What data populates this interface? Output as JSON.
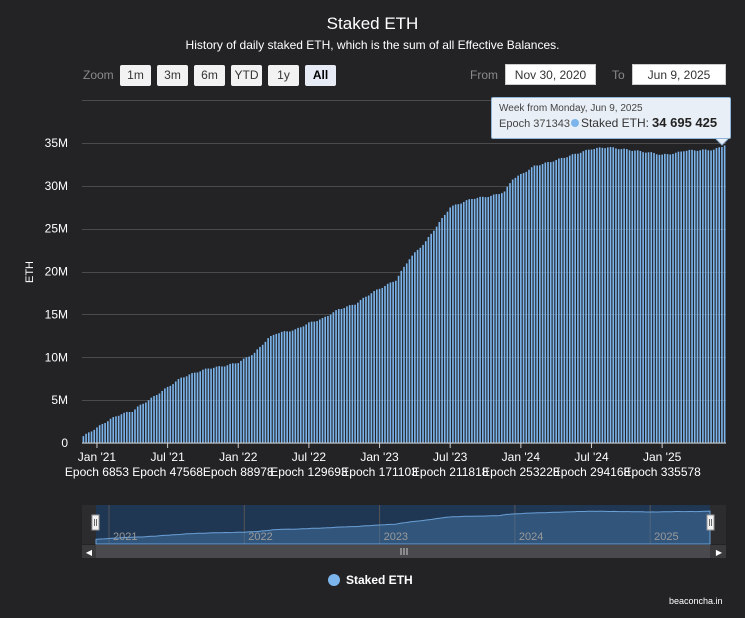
{
  "header": {
    "title": "Staked ETH",
    "subtitle": "History of daily staked ETH, which is the sum of all Effective Balances."
  },
  "zoom": {
    "label": "Zoom",
    "buttons": [
      "1m",
      "3m",
      "6m",
      "YTD",
      "1y",
      "All"
    ],
    "active": "All"
  },
  "range": {
    "from_label": "From",
    "from_value": "Nov 30, 2020",
    "to_label": "To",
    "to_value": "Jun 9, 2025"
  },
  "tooltip": {
    "header": "Week from Monday, Jun 9, 2025",
    "epoch": "Epoch 371343",
    "series_name": "Staked ETH:",
    "value": "34 695 425"
  },
  "legend": {
    "label": "Staked ETH"
  },
  "credit": {
    "label": "beaconcha.in"
  },
  "colors": {
    "series": "#7cb5ec",
    "background": "#232225"
  },
  "chart_data": {
    "type": "bar",
    "title": "Staked ETH",
    "subtitle": "History of daily staked ETH, which is the sum of all Effective Balances.",
    "xlabel": "",
    "ylabel": "ETH",
    "ylim": [
      0,
      40000000
    ],
    "y_ticks": [
      0,
      5000000,
      10000000,
      15000000,
      20000000,
      25000000,
      30000000,
      35000000
    ],
    "y_tick_labels": [
      "0",
      "5M",
      "10M",
      "15M",
      "20M",
      "25M",
      "30M",
      "35M"
    ],
    "x_ticks": [
      {
        "label": "Jan '21",
        "epoch": "Epoch 6853",
        "week": 5
      },
      {
        "label": "Jul '21",
        "epoch": "Epoch 47568",
        "week": 31
      },
      {
        "label": "Jan '22",
        "epoch": "Epoch 88978",
        "week": 57
      },
      {
        "label": "Jul '22",
        "epoch": "Epoch 129693",
        "week": 83
      },
      {
        "label": "Jan '23",
        "epoch": "Epoch 171103",
        "week": 109
      },
      {
        "label": "Jul '23",
        "epoch": "Epoch 211818",
        "week": 135
      },
      {
        "label": "Jan '24",
        "epoch": "Epoch 253228",
        "week": 161
      },
      {
        "label": "Jul '24",
        "epoch": "Epoch 294168",
        "week": 187
      },
      {
        "label": "Jan '25",
        "epoch": "Epoch 335578",
        "week": 213
      }
    ],
    "interval": "weekly",
    "num_weeks": 237,
    "anchors": [
      [
        0,
        0.8
      ],
      [
        5,
        1.8
      ],
      [
        10,
        2.8
      ],
      [
        14,
        3.4
      ],
      [
        18,
        3.7
      ],
      [
        20,
        4.2
      ],
      [
        24,
        5.0
      ],
      [
        31,
        6.5
      ],
      [
        36,
        7.6
      ],
      [
        41,
        8.2
      ],
      [
        46,
        8.7
      ],
      [
        52,
        9.0
      ],
      [
        57,
        9.4
      ],
      [
        63,
        10.5
      ],
      [
        68,
        12.2
      ],
      [
        71,
        12.8
      ],
      [
        78,
        13.2
      ],
      [
        83,
        14.0
      ],
      [
        88,
        14.5
      ],
      [
        94,
        15.6
      ],
      [
        100,
        16.2
      ],
      [
        106,
        17.5
      ],
      [
        109,
        18.0
      ],
      [
        115,
        19.0
      ],
      [
        120,
        21.5
      ],
      [
        126,
        23.5
      ],
      [
        135,
        27.5
      ],
      [
        143,
        28.5
      ],
      [
        150,
        28.8
      ],
      [
        155,
        29.3
      ],
      [
        158,
        30.8
      ],
      [
        161,
        31.3
      ],
      [
        166,
        32.3
      ],
      [
        172,
        32.8
      ],
      [
        177,
        33.3
      ],
      [
        187,
        34.3
      ],
      [
        193,
        34.5
      ],
      [
        198,
        34.3
      ],
      [
        203,
        34.1
      ],
      [
        210,
        33.8
      ],
      [
        213,
        33.6
      ],
      [
        218,
        33.8
      ],
      [
        221,
        34.1
      ],
      [
        232,
        34.2
      ],
      [
        236,
        34.695425
      ]
    ],
    "anchor_unit": "million ETH",
    "last_value": 34695425,
    "navigator_labels": [
      "2021",
      "2022",
      "2023",
      "2024",
      "2025"
    ]
  }
}
